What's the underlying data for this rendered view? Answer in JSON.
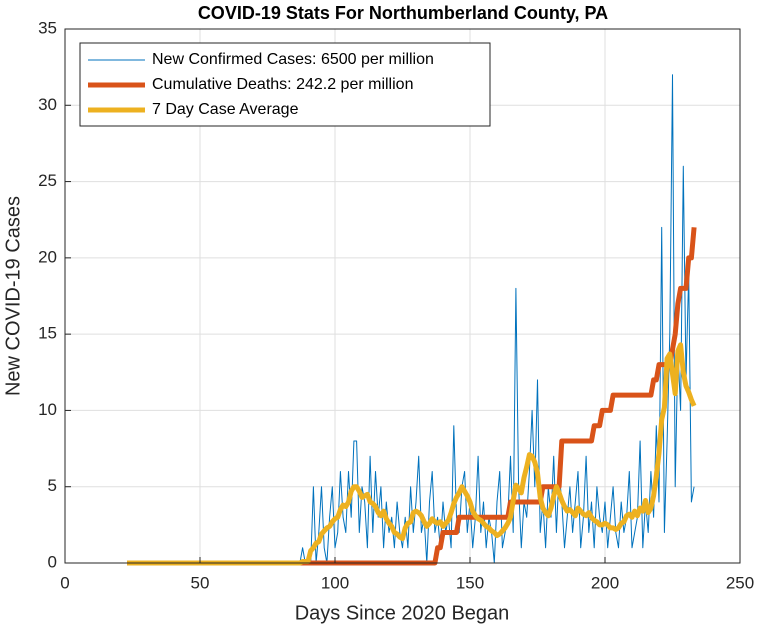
{
  "chart_data": {
    "type": "line",
    "title": "COVID-19 Stats For Northumberland County, PA",
    "x_label": "Days Since 2020 Began",
    "y_label": "New COVID-19 Cases",
    "xlim": [
      0,
      250
    ],
    "xticks": [
      0,
      50,
      100,
      150,
      200,
      250
    ],
    "ylim": [
      0,
      35
    ],
    "yticks": [
      0,
      5,
      10,
      15,
      20,
      25,
      30,
      35
    ],
    "grid": true,
    "legend": "northwest",
    "x": [
      23,
      24,
      25,
      26,
      27,
      28,
      29,
      30,
      31,
      32,
      33,
      34,
      35,
      36,
      37,
      38,
      39,
      40,
      41,
      42,
      43,
      44,
      45,
      46,
      47,
      48,
      49,
      50,
      51,
      52,
      53,
      54,
      55,
      56,
      57,
      58,
      59,
      60,
      61,
      62,
      63,
      64,
      65,
      66,
      67,
      68,
      69,
      70,
      71,
      72,
      73,
      74,
      75,
      76,
      77,
      78,
      79,
      80,
      81,
      82,
      83,
      84,
      85,
      86,
      87,
      88,
      89,
      90,
      91,
      92,
      93,
      94,
      95,
      96,
      97,
      98,
      99,
      100,
      101,
      102,
      103,
      104,
      105,
      106,
      107,
      108,
      109,
      110,
      111,
      112,
      113,
      114,
      115,
      116,
      117,
      118,
      119,
      120,
      121,
      122,
      123,
      124,
      125,
      126,
      127,
      128,
      129,
      130,
      131,
      132,
      133,
      134,
      135,
      136,
      137,
      138,
      139,
      140,
      141,
      142,
      143,
      144,
      145,
      146,
      147,
      148,
      149,
      150,
      151,
      152,
      153,
      154,
      155,
      156,
      157,
      158,
      159,
      160,
      161,
      162,
      163,
      164,
      165,
      166,
      167,
      168,
      169,
      170,
      171,
      172,
      173,
      174,
      175,
      176,
      177,
      178,
      179,
      180,
      181,
      182,
      183,
      184,
      185,
      186,
      187,
      188,
      189,
      190,
      191,
      192,
      193,
      194,
      195,
      196,
      197,
      198,
      199,
      200,
      201,
      202,
      203,
      204,
      205,
      206,
      207,
      208,
      209,
      210,
      211,
      212,
      213,
      214,
      215,
      216,
      217,
      218,
      219,
      220,
      221,
      222,
      223,
      224,
      225,
      226,
      227,
      228,
      229,
      230,
      231,
      232,
      233
    ],
    "series": [
      {
        "name": "New Confirmed Cases: 6500 per million",
        "color": "#0072BD",
        "width": 1,
        "values": [
          0,
          0,
          0,
          0,
          0,
          0,
          0,
          0,
          0,
          0,
          0,
          0,
          0,
          0,
          0,
          0,
          0,
          0,
          0,
          0,
          0,
          0,
          0,
          0,
          0,
          0,
          0,
          0,
          0,
          0,
          0,
          0,
          0,
          0,
          0,
          0,
          0,
          0,
          0,
          0,
          0,
          0,
          0,
          0,
          0,
          0,
          0,
          0,
          0,
          0,
          0,
          0,
          0,
          0,
          0,
          0,
          0,
          0,
          0,
          0,
          0,
          0,
          0,
          0,
          0,
          1,
          0,
          0,
          0,
          5,
          0,
          2,
          5,
          1,
          0,
          3,
          5,
          1,
          2,
          6,
          3,
          2,
          6,
          3,
          8,
          8,
          2,
          5,
          4,
          1,
          7,
          2,
          6,
          3,
          5,
          1,
          4,
          2,
          3,
          1,
          4,
          2,
          1,
          3,
          1,
          5,
          2,
          4,
          7,
          2,
          3,
          0,
          4,
          6,
          2,
          3,
          1,
          4,
          2,
          3,
          1,
          9,
          3,
          2,
          5,
          6,
          2,
          4,
          1,
          3,
          7,
          2,
          4,
          1,
          3,
          2,
          0,
          4,
          6,
          1,
          2,
          3,
          7,
          2,
          18,
          5,
          1,
          4,
          3,
          6,
          10,
          5,
          12,
          2,
          4,
          1,
          5,
          3,
          7,
          2,
          6,
          4,
          1,
          3,
          5,
          2,
          4,
          6,
          1,
          3,
          7,
          2,
          4,
          1,
          5,
          3,
          2,
          4,
          1,
          3,
          5,
          2,
          1,
          4,
          2,
          3,
          6,
          1,
          2,
          3,
          8,
          1,
          4,
          2,
          6,
          3,
          9,
          4,
          22,
          2,
          8,
          15,
          32,
          5,
          14,
          10,
          26,
          12,
          19,
          4,
          5
        ]
      },
      {
        "name": "Cumulative Deaths: 242.2 per million",
        "color": "#D95319",
        "width": 5,
        "values": [
          0,
          0,
          0,
          0,
          0,
          0,
          0,
          0,
          0,
          0,
          0,
          0,
          0,
          0,
          0,
          0,
          0,
          0,
          0,
          0,
          0,
          0,
          0,
          0,
          0,
          0,
          0,
          0,
          0,
          0,
          0,
          0,
          0,
          0,
          0,
          0,
          0,
          0,
          0,
          0,
          0,
          0,
          0,
          0,
          0,
          0,
          0,
          0,
          0,
          0,
          0,
          0,
          0,
          0,
          0,
          0,
          0,
          0,
          0,
          0,
          0,
          0,
          0,
          0,
          0,
          0,
          0,
          0,
          0,
          0,
          0,
          0,
          0,
          0,
          0,
          0,
          0,
          0,
          0,
          0,
          0,
          0,
          0,
          0,
          0,
          0,
          0,
          0,
          0,
          0,
          0,
          0,
          0,
          0,
          0,
          0,
          0,
          0,
          0,
          0,
          0,
          0,
          0,
          0,
          0,
          0,
          0,
          0,
          0,
          0,
          0,
          0,
          0,
          0,
          0,
          1,
          1,
          2,
          2,
          2,
          2,
          2,
          2,
          3,
          3,
          3,
          3,
          3,
          3,
          3,
          3,
          3,
          3,
          3,
          3,
          3,
          3,
          3,
          3,
          3,
          3,
          3,
          4,
          4,
          4,
          4,
          4,
          4,
          4,
          4,
          4,
          4,
          4,
          4,
          5,
          5,
          5,
          5,
          5,
          5,
          5,
          8,
          8,
          8,
          8,
          8,
          8,
          8,
          8,
          8,
          8,
          8,
          8,
          9,
          9,
          9,
          10,
          10,
          10,
          10,
          11,
          11,
          11,
          11,
          11,
          11,
          11,
          11,
          11,
          11,
          11,
          11,
          11,
          11,
          11,
          12,
          12,
          13,
          13,
          13,
          13,
          13,
          14,
          15,
          17,
          18,
          18,
          18,
          20,
          20,
          22
        ]
      },
      {
        "name": "7 Day Case Average",
        "color": "#EDB120",
        "width": 5,
        "values": [
          0,
          0,
          0,
          0,
          0,
          0,
          0,
          0,
          0,
          0,
          0,
          0,
          0,
          0,
          0,
          0,
          0,
          0,
          0,
          0,
          0,
          0,
          0,
          0,
          0,
          0,
          0,
          0,
          0,
          0,
          0,
          0,
          0,
          0,
          0,
          0,
          0,
          0,
          0,
          0,
          0,
          0,
          0,
          0,
          0,
          0,
          0,
          0,
          0,
          0,
          0,
          0,
          0,
          0,
          0,
          0,
          0,
          0,
          0,
          0,
          0,
          0,
          0,
          0,
          0,
          0.1,
          0.1,
          0.1,
          0.8,
          1,
          1.3,
          1.4,
          1.9,
          2.1,
          2.3,
          2.4,
          2.7,
          2.9,
          3,
          3.5,
          3.8,
          3.7,
          4,
          4.7,
          5,
          5,
          4.7,
          4.3,
          4.4,
          4.5,
          4,
          3.9,
          3.7,
          3.3,
          3.1,
          3.4,
          2.9,
          2.6,
          2.4,
          2,
          1.9,
          1.7,
          1.6,
          2.3,
          2.6,
          2.7,
          3.3,
          3.4,
          3.3,
          3.1,
          2.7,
          2.4,
          2.6,
          2.9,
          2.7,
          2.6,
          2.7,
          2.4,
          2.6,
          2.8,
          3.3,
          3.9,
          4.3,
          4.6,
          5,
          4.7,
          4.4,
          4,
          3.4,
          3.1,
          2.9,
          2.8,
          2.6,
          2.4,
          2.3,
          2.1,
          2,
          1.8,
          1.9,
          2.1,
          2.3,
          2.6,
          3,
          4.1,
          5.1,
          4.9,
          4.6,
          5.6,
          6.3,
          7.1,
          7,
          6.6,
          5.9,
          4.3,
          3.6,
          3.3,
          3.1,
          3.6,
          4.4,
          5,
          4.6,
          4.1,
          3.7,
          3.4,
          3.5,
          3.3,
          3.1,
          3.6,
          3.4,
          3.2,
          3.1,
          3.3,
          3,
          2.8,
          2.7,
          2.5,
          2.5,
          2.6,
          2.5,
          2.3,
          2.3,
          2.2,
          2.3,
          2.6,
          2.7,
          3.1,
          3.2,
          3,
          3.4,
          3.1,
          3.6,
          3.4,
          4.1,
          3.3,
          3.6,
          4.4,
          5.7,
          7.2,
          9.4,
          10.2,
          13.4,
          13.7,
          12.4,
          11.1,
          13.9,
          14.3,
          12.5,
          11.6,
          11.2,
          10.7,
          10.3
        ]
      }
    ]
  }
}
